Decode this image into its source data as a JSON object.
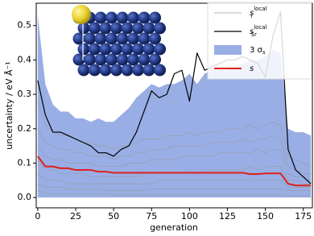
{
  "chart_data": {
    "type": "line",
    "xlabel": "generation",
    "ylabel": "uncertainty / eV Å⁻¹",
    "xlim": [
      -1,
      181
    ],
    "ylim": [
      -0.03,
      0.565
    ],
    "xticks": [
      0,
      25,
      50,
      75,
      100,
      125,
      150,
      175
    ],
    "yticks": [
      {
        "value": 0,
        "label": "0.0"
      },
      {
        "value": 0.1,
        "label": "0.1"
      },
      {
        "value": 0.2,
        "label": "0.2"
      },
      {
        "value": 0.3,
        "label": "0.3"
      },
      {
        "value": 0.4,
        "label": "0.4"
      },
      {
        "value": 0.5,
        "label": "0.5"
      }
    ],
    "legend": "upper right",
    "x": [
      0,
      5,
      10,
      15,
      20,
      25,
      30,
      35,
      40,
      45,
      50,
      55,
      60,
      65,
      70,
      75,
      80,
      85,
      90,
      95,
      100,
      105,
      110,
      115,
      120,
      125,
      130,
      135,
      140,
      145,
      150,
      155,
      160,
      165,
      170,
      175,
      180
    ],
    "series": [
      {
        "name": "s",
        "sub": "i",
        "sup": "local",
        "color": "#9a9a9a",
        "kind": "lines",
        "lines": [
          [
            0.28,
            0.21,
            0.19,
            0.18,
            0.18,
            0.17,
            0.16,
            0.16,
            0.15,
            0.15,
            0.14,
            0.15,
            0.15,
            0.16,
            0.17,
            0.17,
            0.17,
            0.18,
            0.18,
            0.18,
            0.19,
            0.18,
            0.19,
            0.19,
            0.19,
            0.2,
            0.2,
            0.2,
            0.21,
            0.2,
            0.21,
            0.22,
            0.21,
            0.12,
            0.11,
            0.1,
            0.09
          ],
          [
            0.2,
            0.16,
            0.15,
            0.14,
            0.14,
            0.13,
            0.13,
            0.12,
            0.12,
            0.12,
            0.11,
            0.12,
            0.12,
            0.13,
            0.13,
            0.14,
            0.14,
            0.14,
            0.15,
            0.15,
            0.15,
            0.15,
            0.15,
            0.16,
            0.16,
            0.16,
            0.16,
            0.17,
            0.16,
            0.17,
            0.17,
            0.18,
            0.17,
            0.09,
            0.08,
            0.07,
            0.07
          ],
          [
            0.15,
            0.12,
            0.11,
            0.11,
            0.1,
            0.1,
            0.1,
            0.1,
            0.09,
            0.09,
            0.09,
            0.09,
            0.1,
            0.1,
            0.1,
            0.11,
            0.11,
            0.11,
            0.11,
            0.12,
            0.12,
            0.12,
            0.12,
            0.12,
            0.13,
            0.13,
            0.13,
            0.13,
            0.13,
            0.14,
            0.13,
            0.14,
            0.14,
            0.07,
            0.06,
            0.06,
            0.05
          ],
          [
            0.11,
            0.08,
            0.08,
            0.07,
            0.07,
            0.07,
            0.07,
            0.06,
            0.06,
            0.06,
            0.06,
            0.06,
            0.06,
            0.06,
            0.07,
            0.07,
            0.07,
            0.07,
            0.07,
            0.07,
            0.08,
            0.07,
            0.08,
            0.08,
            0.08,
            0.08,
            0.08,
            0.08,
            0.09,
            0.08,
            0.09,
            0.09,
            0.09,
            0.05,
            0.05,
            0.04,
            0.04
          ],
          [
            0.07,
            0.05,
            0.05,
            0.05,
            0.04,
            0.04,
            0.04,
            0.04,
            0.04,
            0.04,
            0.04,
            0.04,
            0.04,
            0.04,
            0.04,
            0.04,
            0.05,
            0.05,
            0.05,
            0.05,
            0.05,
            0.05,
            0.05,
            0.05,
            0.05,
            0.05,
            0.05,
            0.05,
            0.05,
            0.05,
            0.05,
            0.05,
            0.05,
            0.03,
            0.03,
            0.03,
            0.03
          ],
          [
            0.04,
            0.03,
            0.03,
            0.03,
            0.025,
            0.025,
            0.025,
            0.025,
            0.025,
            0.02,
            0.02,
            0.02,
            0.02,
            0.02,
            0.02,
            0.025,
            0.025,
            0.025,
            0.025,
            0.025,
            0.025,
            0.025,
            0.025,
            0.025,
            0.025,
            0.025,
            0.025,
            0.025,
            0.025,
            0.025,
            0.025,
            0.025,
            0.025,
            0.02,
            0.02,
            0.02,
            0.02
          ],
          [
            0.02,
            0.01,
            0.01,
            0.01,
            0.01,
            0.01,
            0.01,
            0.01,
            0.01,
            0.01,
            0.008,
            0.008,
            0.008,
            0.008,
            0.008,
            0.008,
            0.008,
            0.008,
            0.008,
            0.008,
            0.008,
            0.008,
            0.008,
            0.008,
            0.008,
            0.008,
            0.008,
            0.008,
            0.008,
            0.008,
            0.008,
            0.008,
            0.008,
            0.005,
            0.005,
            0.005,
            0.005
          ]
        ]
      },
      {
        "name": "s",
        "sub": "Sr",
        "sup": "local",
        "color": "#000000",
        "kind": "line",
        "values": [
          0.34,
          0.24,
          0.19,
          0.19,
          0.18,
          0.17,
          0.16,
          0.15,
          0.13,
          0.13,
          0.12,
          0.14,
          0.15,
          0.19,
          0.25,
          0.31,
          0.29,
          0.3,
          0.36,
          0.37,
          0.28,
          0.42,
          0.37,
          0.38,
          0.39,
          0.4,
          0.4,
          0.41,
          0.4,
          0.39,
          0.35,
          0.47,
          0.54,
          0.14,
          0.08,
          0.06,
          0.04
        ]
      },
      {
        "name": "3 σ",
        "sub": "s",
        "color": "#7f9ade",
        "kind": "band",
        "values": [
          0.53,
          0.33,
          0.27,
          0.25,
          0.25,
          0.23,
          0.23,
          0.22,
          0.23,
          0.22,
          0.22,
          0.24,
          0.26,
          0.29,
          0.31,
          0.33,
          0.32,
          0.33,
          0.33,
          0.34,
          0.36,
          0.33,
          0.36,
          0.37,
          0.37,
          0.37,
          0.38,
          0.39,
          0.4,
          0.4,
          0.41,
          0.43,
          0.42,
          0.2,
          0.19,
          0.19,
          0.18
        ]
      },
      {
        "name": "s",
        "color": "#e0201b",
        "kind": "line",
        "values": [
          0.12,
          0.09,
          0.09,
          0.085,
          0.085,
          0.08,
          0.08,
          0.08,
          0.075,
          0.075,
          0.072,
          0.072,
          0.072,
          0.072,
          0.072,
          0.072,
          0.072,
          0.072,
          0.072,
          0.072,
          0.072,
          0.072,
          0.072,
          0.072,
          0.072,
          0.072,
          0.072,
          0.072,
          0.068,
          0.068,
          0.07,
          0.07,
          0.07,
          0.04,
          0.035,
          0.035,
          0.035
        ]
      }
    ]
  }
}
